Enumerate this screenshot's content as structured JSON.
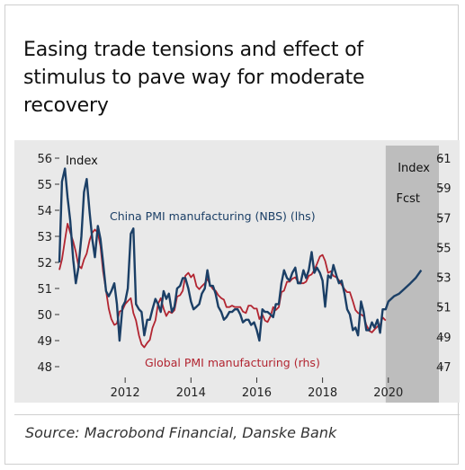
{
  "title": "Easing trade tensions and effect of stimulus to pave way for moderate recovery",
  "source": "Source: Macrobond Financial, Danske Bank",
  "chart_data": {
    "type": "line",
    "left_axis_unit": "Index",
    "right_axis_unit": "Index",
    "forecast_label": "Fcst",
    "ylim_left": [
      48,
      56
    ],
    "ylim_right": [
      47,
      61
    ],
    "yticks_left": [
      "48",
      "49",
      "50",
      "51",
      "52",
      "53",
      "54",
      "55",
      "56"
    ],
    "yticks_right": [
      "47",
      "49",
      "51",
      "53",
      "55",
      "57",
      "59",
      "61"
    ],
    "xticks": [
      "2012",
      "2014",
      "2016",
      "2018",
      "2020"
    ],
    "forecast_start": 2019.92,
    "forecast_end": 2021.0,
    "colors": {
      "china": "#1b3f66",
      "global": "#b22531",
      "forecast_band": "#bdbdbd",
      "background": "#e9e9e9"
    },
    "series": [
      {
        "name": "China PMI manufacturing (NBS) (lhs)",
        "axis": "left",
        "points": [
          [
            2010.0,
            52.0
          ],
          [
            2010.08,
            55.1
          ],
          [
            2010.17,
            55.6
          ],
          [
            2010.25,
            54.5
          ],
          [
            2010.33,
            53.6
          ],
          [
            2010.42,
            52.1
          ],
          [
            2010.5,
            51.2
          ],
          [
            2010.58,
            51.8
          ],
          [
            2010.67,
            53.0
          ],
          [
            2010.75,
            54.7
          ],
          [
            2010.83,
            55.2
          ],
          [
            2010.92,
            53.9
          ],
          [
            2011.0,
            52.9
          ],
          [
            2011.08,
            52.2
          ],
          [
            2011.17,
            53.4
          ],
          [
            2011.25,
            52.9
          ],
          [
            2011.33,
            52.0
          ],
          [
            2011.42,
            50.9
          ],
          [
            2011.5,
            50.7
          ],
          [
            2011.58,
            50.9
          ],
          [
            2011.67,
            51.2
          ],
          [
            2011.75,
            50.4
          ],
          [
            2011.83,
            49.0
          ],
          [
            2011.92,
            50.3
          ],
          [
            2012.0,
            50.5
          ],
          [
            2012.08,
            51.0
          ],
          [
            2012.17,
            53.1
          ],
          [
            2012.25,
            53.3
          ],
          [
            2012.33,
            50.4
          ],
          [
            2012.42,
            50.2
          ],
          [
            2012.5,
            50.1
          ],
          [
            2012.58,
            49.2
          ],
          [
            2012.67,
            49.8
          ],
          [
            2012.75,
            49.8
          ],
          [
            2012.83,
            50.2
          ],
          [
            2012.92,
            50.6
          ],
          [
            2013.0,
            50.4
          ],
          [
            2013.08,
            50.1
          ],
          [
            2013.17,
            50.9
          ],
          [
            2013.25,
            50.6
          ],
          [
            2013.33,
            50.8
          ],
          [
            2013.42,
            50.1
          ],
          [
            2013.5,
            50.3
          ],
          [
            2013.58,
            51.0
          ],
          [
            2013.67,
            51.1
          ],
          [
            2013.75,
            51.4
          ],
          [
            2013.83,
            51.4
          ],
          [
            2013.92,
            51.0
          ],
          [
            2014.0,
            50.5
          ],
          [
            2014.08,
            50.2
          ],
          [
            2014.17,
            50.3
          ],
          [
            2014.25,
            50.4
          ],
          [
            2014.33,
            50.8
          ],
          [
            2014.42,
            51.0
          ],
          [
            2014.5,
            51.7
          ],
          [
            2014.58,
            51.1
          ],
          [
            2014.67,
            51.1
          ],
          [
            2014.75,
            50.8
          ],
          [
            2014.83,
            50.3
          ],
          [
            2014.92,
            50.1
          ],
          [
            2015.0,
            49.8
          ],
          [
            2015.08,
            49.9
          ],
          [
            2015.17,
            50.1
          ],
          [
            2015.25,
            50.1
          ],
          [
            2015.33,
            50.2
          ],
          [
            2015.42,
            50.2
          ],
          [
            2015.5,
            50.0
          ],
          [
            2015.58,
            49.7
          ],
          [
            2015.67,
            49.8
          ],
          [
            2015.75,
            49.8
          ],
          [
            2015.83,
            49.6
          ],
          [
            2015.92,
            49.7
          ],
          [
            2016.0,
            49.4
          ],
          [
            2016.08,
            49.0
          ],
          [
            2016.17,
            50.2
          ],
          [
            2016.25,
            50.1
          ],
          [
            2016.33,
            50.1
          ],
          [
            2016.42,
            50.0
          ],
          [
            2016.5,
            49.9
          ],
          [
            2016.58,
            50.4
          ],
          [
            2016.67,
            50.4
          ],
          [
            2016.75,
            51.2
          ],
          [
            2016.83,
            51.7
          ],
          [
            2016.92,
            51.4
          ],
          [
            2017.0,
            51.3
          ],
          [
            2017.08,
            51.6
          ],
          [
            2017.17,
            51.8
          ],
          [
            2017.25,
            51.2
          ],
          [
            2017.33,
            51.2
          ],
          [
            2017.42,
            51.7
          ],
          [
            2017.5,
            51.4
          ],
          [
            2017.58,
            51.7
          ],
          [
            2017.67,
            52.4
          ],
          [
            2017.75,
            51.6
          ],
          [
            2017.83,
            51.8
          ],
          [
            2017.92,
            51.6
          ],
          [
            2018.0,
            51.3
          ],
          [
            2018.08,
            50.3
          ],
          [
            2018.17,
            51.5
          ],
          [
            2018.25,
            51.4
          ],
          [
            2018.33,
            51.9
          ],
          [
            2018.42,
            51.5
          ],
          [
            2018.5,
            51.2
          ],
          [
            2018.58,
            51.3
          ],
          [
            2018.67,
            50.8
          ],
          [
            2018.75,
            50.2
          ],
          [
            2018.83,
            50.0
          ],
          [
            2018.92,
            49.4
          ],
          [
            2019.0,
            49.5
          ],
          [
            2019.08,
            49.2
          ],
          [
            2019.17,
            50.5
          ],
          [
            2019.25,
            50.1
          ],
          [
            2019.33,
            49.4
          ],
          [
            2019.42,
            49.4
          ],
          [
            2019.5,
            49.7
          ],
          [
            2019.58,
            49.5
          ],
          [
            2019.67,
            49.8
          ],
          [
            2019.75,
            49.3
          ],
          [
            2019.83,
            50.2
          ],
          [
            2019.92,
            50.2
          ],
          [
            2020.0,
            50.5
          ],
          [
            2020.17,
            50.7
          ],
          [
            2020.33,
            50.8
          ],
          [
            2020.5,
            51.0
          ],
          [
            2020.67,
            51.2
          ],
          [
            2020.83,
            51.4
          ],
          [
            2021.0,
            51.7
          ]
        ]
      },
      {
        "name": "Global PMI manufacturing (rhs)",
        "axis": "right",
        "points": [
          [
            2010.0,
            53.5
          ],
          [
            2010.08,
            54.2
          ],
          [
            2010.17,
            55.5
          ],
          [
            2010.25,
            56.6
          ],
          [
            2010.33,
            56.0
          ],
          [
            2010.42,
            55.4
          ],
          [
            2010.5,
            54.7
          ],
          [
            2010.58,
            53.8
          ],
          [
            2010.67,
            53.6
          ],
          [
            2010.75,
            54.2
          ],
          [
            2010.83,
            54.6
          ],
          [
            2010.92,
            55.5
          ],
          [
            2011.0,
            56.0
          ],
          [
            2011.08,
            56.2
          ],
          [
            2011.17,
            56.0
          ],
          [
            2011.25,
            55.1
          ],
          [
            2011.33,
            53.4
          ],
          [
            2011.42,
            52.1
          ],
          [
            2011.5,
            50.9
          ],
          [
            2011.58,
            50.2
          ],
          [
            2011.67,
            49.8
          ],
          [
            2011.75,
            49.9
          ],
          [
            2011.83,
            50.7
          ],
          [
            2011.92,
            50.8
          ],
          [
            2012.0,
            51.2
          ],
          [
            2012.08,
            51.4
          ],
          [
            2012.17,
            51.6
          ],
          [
            2012.25,
            50.6
          ],
          [
            2012.33,
            50.1
          ],
          [
            2012.42,
            49.1
          ],
          [
            2012.5,
            48.5
          ],
          [
            2012.58,
            48.3
          ],
          [
            2012.67,
            48.6
          ],
          [
            2012.75,
            48.8
          ],
          [
            2012.83,
            49.6
          ],
          [
            2012.92,
            50.1
          ],
          [
            2013.0,
            51.2
          ],
          [
            2013.08,
            51.6
          ],
          [
            2013.17,
            50.9
          ],
          [
            2013.25,
            50.4
          ],
          [
            2013.33,
            50.7
          ],
          [
            2013.42,
            50.6
          ],
          [
            2013.5,
            50.8
          ],
          [
            2013.58,
            51.7
          ],
          [
            2013.67,
            51.8
          ],
          [
            2013.75,
            52.1
          ],
          [
            2013.83,
            53.1
          ],
          [
            2013.92,
            53.3
          ],
          [
            2014.0,
            53.0
          ],
          [
            2014.08,
            53.2
          ],
          [
            2014.17,
            52.4
          ],
          [
            2014.25,
            52.2
          ],
          [
            2014.33,
            52.4
          ],
          [
            2014.42,
            52.6
          ],
          [
            2014.5,
            52.9
          ],
          [
            2014.58,
            52.5
          ],
          [
            2014.67,
            52.2
          ],
          [
            2014.75,
            52.1
          ],
          [
            2014.83,
            51.8
          ],
          [
            2014.92,
            51.6
          ],
          [
            2015.0,
            51.5
          ],
          [
            2015.08,
            51.0
          ],
          [
            2015.17,
            51.0
          ],
          [
            2015.25,
            51.1
          ],
          [
            2015.33,
            51.0
          ],
          [
            2015.42,
            51.0
          ],
          [
            2015.5,
            51.0
          ],
          [
            2015.58,
            50.7
          ],
          [
            2015.67,
            50.6
          ],
          [
            2015.75,
            51.1
          ],
          [
            2015.83,
            51.1
          ],
          [
            2015.92,
            50.9
          ],
          [
            2016.0,
            50.9
          ],
          [
            2016.08,
            50.2
          ],
          [
            2016.17,
            50.5
          ],
          [
            2016.25,
            50.1
          ],
          [
            2016.33,
            50.0
          ],
          [
            2016.42,
            50.4
          ],
          [
            2016.5,
            51.0
          ],
          [
            2016.58,
            50.8
          ],
          [
            2016.67,
            51.0
          ],
          [
            2016.75,
            52.0
          ],
          [
            2016.83,
            52.1
          ],
          [
            2016.92,
            52.7
          ],
          [
            2017.0,
            52.7
          ],
          [
            2017.08,
            52.9
          ],
          [
            2017.17,
            53.0
          ],
          [
            2017.25,
            52.7
          ],
          [
            2017.33,
            52.6
          ],
          [
            2017.42,
            52.6
          ],
          [
            2017.5,
            52.7
          ],
          [
            2017.58,
            53.1
          ],
          [
            2017.67,
            53.2
          ],
          [
            2017.75,
            53.5
          ],
          [
            2017.83,
            53.9
          ],
          [
            2017.92,
            54.4
          ],
          [
            2018.0,
            54.5
          ],
          [
            2018.08,
            54.1
          ],
          [
            2018.17,
            53.3
          ],
          [
            2018.25,
            53.4
          ],
          [
            2018.33,
            53.1
          ],
          [
            2018.42,
            53.0
          ],
          [
            2018.5,
            52.8
          ],
          [
            2018.58,
            52.5
          ],
          [
            2018.67,
            52.2
          ],
          [
            2018.75,
            52.0
          ],
          [
            2018.83,
            52.0
          ],
          [
            2018.92,
            51.4
          ],
          [
            2019.0,
            50.8
          ],
          [
            2019.08,
            50.6
          ],
          [
            2019.17,
            50.5
          ],
          [
            2019.25,
            50.4
          ],
          [
            2019.33,
            49.8
          ],
          [
            2019.42,
            49.4
          ],
          [
            2019.5,
            49.3
          ],
          [
            2019.58,
            49.5
          ],
          [
            2019.67,
            49.7
          ],
          [
            2019.75,
            49.8
          ],
          [
            2019.83,
            50.3
          ],
          [
            2019.92,
            50.1
          ]
        ]
      }
    ]
  }
}
